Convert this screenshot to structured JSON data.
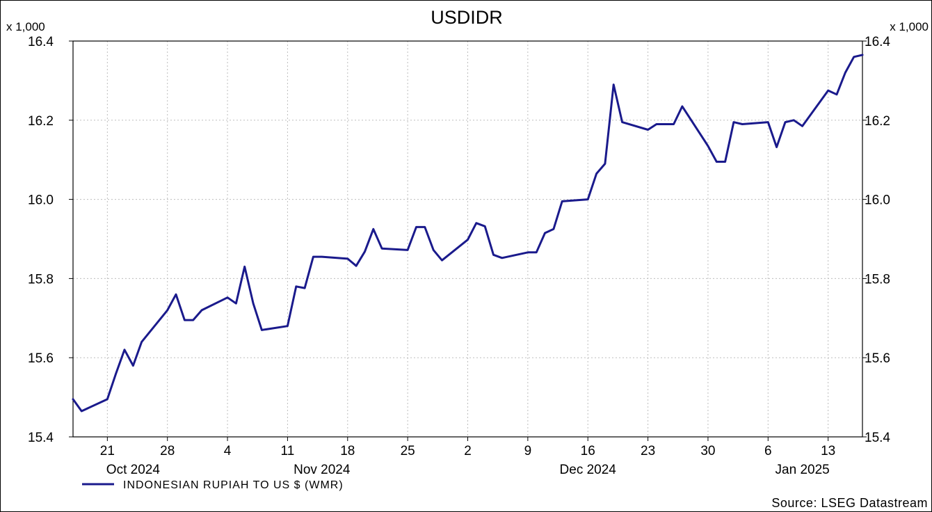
{
  "chart_data": {
    "type": "line",
    "title": "USDIDR",
    "y_scale_note_left": "x 1,000",
    "y_scale_note_right": "x 1,000",
    "ylim": [
      15.4,
      16.4
    ],
    "y_ticks": [
      "16.4",
      "16.2",
      "16.0",
      "15.8",
      "15.6",
      "15.4"
    ],
    "x_ticks": [
      "21",
      "28",
      "4",
      "11",
      "18",
      "25",
      "2",
      "9",
      "16",
      "23",
      "30",
      "6",
      "13"
    ],
    "month_labels": [
      "Oct 2024",
      "Nov 2024",
      "Dec 2024",
      "Jan 2025"
    ],
    "grid": true,
    "legend_position": "bottom-left",
    "source": "Source: LSEG Datastream",
    "line_color": "#1a1a8c",
    "series": [
      {
        "name": "INDONESIAN RUPIAH TO US $ (WMR)",
        "x": [
          "2024-10-17",
          "2024-10-18",
          "2024-10-21",
          "2024-10-22",
          "2024-10-23",
          "2024-10-24",
          "2024-10-25",
          "2024-10-28",
          "2024-10-29",
          "2024-10-30",
          "2024-10-31",
          "2024-11-01",
          "2024-11-04",
          "2024-11-05",
          "2024-11-06",
          "2024-11-07",
          "2024-11-08",
          "2024-11-11",
          "2024-11-12",
          "2024-11-13",
          "2024-11-14",
          "2024-11-15",
          "2024-11-18",
          "2024-11-19",
          "2024-11-20",
          "2024-11-21",
          "2024-11-22",
          "2024-11-25",
          "2024-11-26",
          "2024-11-27",
          "2024-11-28",
          "2024-11-29",
          "2024-12-02",
          "2024-12-03",
          "2024-12-04",
          "2024-12-05",
          "2024-12-06",
          "2024-12-09",
          "2024-12-10",
          "2024-12-11",
          "2024-12-12",
          "2024-12-13",
          "2024-12-16",
          "2024-12-17",
          "2024-12-18",
          "2024-12-19",
          "2024-12-20",
          "2024-12-23",
          "2024-12-24",
          "2024-12-25",
          "2024-12-26",
          "2024-12-27",
          "2024-12-30",
          "2024-12-31",
          "2025-01-01",
          "2025-01-02",
          "2025-01-03",
          "2025-01-06",
          "2025-01-07",
          "2025-01-08",
          "2025-01-09",
          "2025-01-10",
          "2025-01-13",
          "2025-01-14",
          "2025-01-15",
          "2025-01-16",
          "2025-01-17"
        ],
        "values": [
          15.495,
          15.465,
          15.495,
          15.56,
          15.62,
          15.58,
          15.64,
          15.72,
          15.76,
          15.695,
          15.695,
          15.72,
          15.752,
          15.737,
          15.83,
          15.737,
          15.67,
          15.68,
          15.78,
          15.776,
          15.855,
          15.855,
          15.85,
          15.832,
          15.868,
          15.925,
          15.876,
          15.872,
          15.93,
          15.93,
          15.872,
          15.846,
          15.898,
          15.94,
          15.932,
          15.86,
          15.852,
          15.866,
          15.866,
          15.915,
          15.925,
          15.995,
          16.0,
          16.065,
          16.09,
          16.29,
          16.195,
          16.176,
          16.19,
          16.19,
          16.19,
          16.235,
          16.135,
          16.095,
          16.095,
          16.195,
          16.19,
          16.195,
          16.132,
          16.195,
          16.2,
          16.185,
          16.275,
          16.265,
          16.32,
          16.36,
          16.365
        ]
      }
    ]
  }
}
